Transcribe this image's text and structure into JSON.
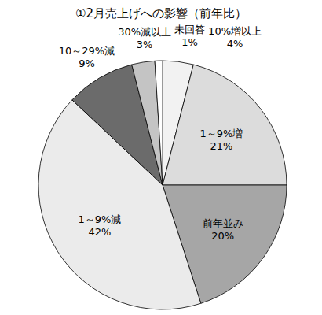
{
  "chart_data": {
    "type": "pie",
    "title": "①2月売上げへの影響（前年比）",
    "categories": [
      "10%増以上",
      "1～9%増",
      "前年並み",
      "1～9%減",
      "10～29%減",
      "30%減以上",
      "未回答"
    ],
    "values": [
      4,
      21,
      20,
      42,
      9,
      3,
      1
    ],
    "value_labels": [
      "4%",
      "21%",
      "20%",
      "42%",
      "9%",
      "3%",
      "1%"
    ],
    "colors": [
      "#f2f2f2",
      "#dcdcdc",
      "#a6a6a6",
      "#ebebeb",
      "#6b6b6b",
      "#c4c4c4",
      "#ffffff"
    ],
    "data_labels": true
  }
}
